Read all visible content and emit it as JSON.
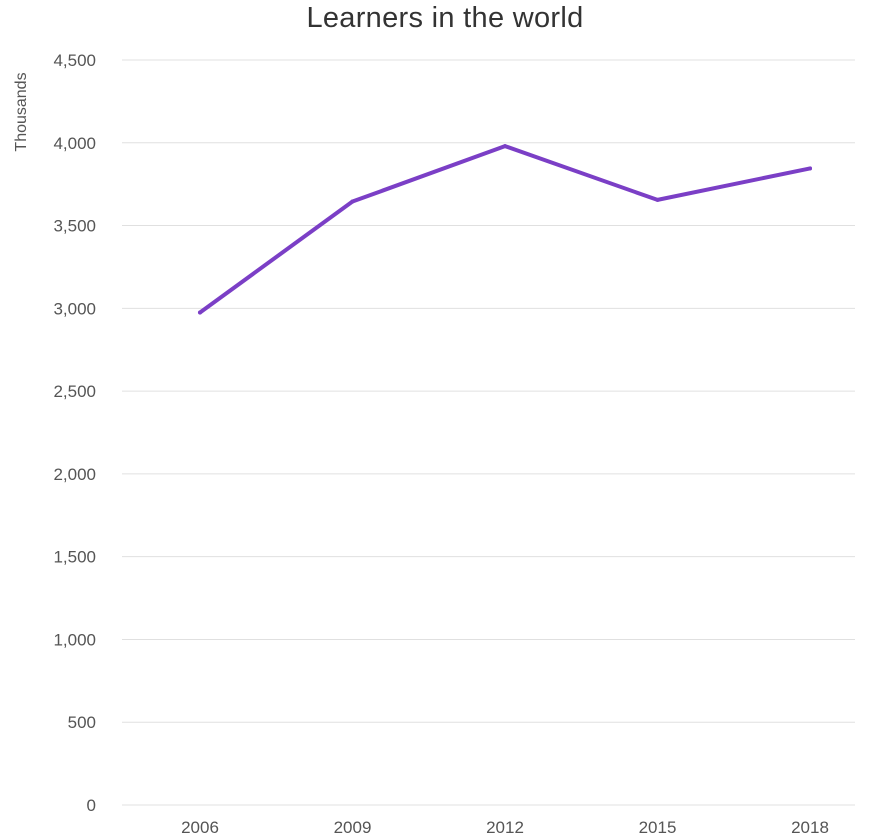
{
  "chart_data": {
    "type": "line",
    "title": "Learners in the world",
    "xlabel": "",
    "ylabel": "Thousands",
    "categories": [
      "2006",
      "2009",
      "2012",
      "2015",
      "2018"
    ],
    "series": [
      {
        "values": [
          2975,
          3645,
          3980,
          3655,
          3845
        ],
        "color": "#7b3fc6"
      }
    ],
    "ylim": [
      0,
      4500
    ],
    "yticks": [
      0,
      500,
      1000,
      1500,
      2000,
      2500,
      3000,
      3500,
      4000,
      4500
    ],
    "ytick_labels": [
      "0",
      "500",
      "1,000",
      "1,500",
      "2,000",
      "2,500",
      "3,000",
      "3,500",
      "4,000",
      "4,500"
    ],
    "grid": true,
    "gridline_color": "#e0e0e0",
    "legend": "none"
  }
}
